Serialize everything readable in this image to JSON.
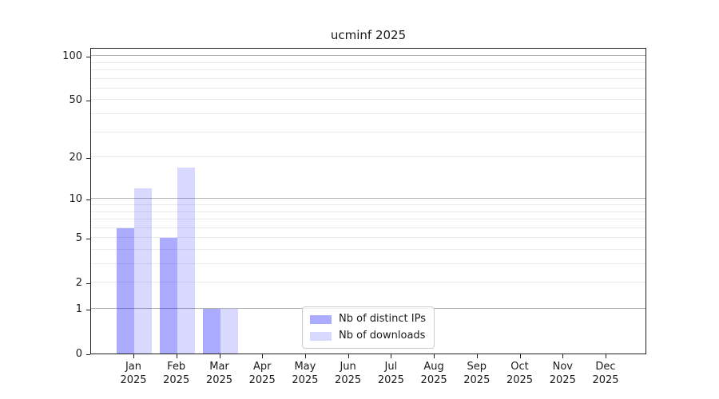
{
  "chart_data": {
    "type": "bar",
    "title": "ucminf 2025",
    "categories": [
      "Jan",
      "Feb",
      "Mar",
      "Apr",
      "May",
      "Jun",
      "Jul",
      "Aug",
      "Sep",
      "Oct",
      "Nov",
      "Dec"
    ],
    "category_year": "2025",
    "series": [
      {
        "name": "Nb of distinct IPs",
        "color": "rgba(0,0,255,0.33)",
        "values": [
          6,
          5,
          1,
          0,
          0,
          0,
          0,
          0,
          0,
          0,
          0,
          0
        ]
      },
      {
        "name": "Nb of downloads",
        "color": "rgba(0,0,255,0.15)",
        "values": [
          12,
          17,
          1,
          0,
          0,
          0,
          0,
          0,
          0,
          0,
          0,
          0
        ]
      }
    ],
    "yscale": "log1p",
    "ylim": [
      0,
      115
    ],
    "yticks": [
      0,
      1,
      2,
      5,
      10,
      20,
      50,
      100
    ],
    "ytick_labels": [
      "0",
      "1",
      "2",
      "5",
      "10",
      "20",
      "50",
      "100"
    ],
    "grid_major_values": [
      1,
      10,
      100
    ],
    "grid_minor_values": [
      2,
      3,
      4,
      5,
      6,
      7,
      8,
      9,
      20,
      30,
      40,
      50,
      60,
      70,
      80,
      90
    ],
    "grid": true,
    "legend_position": "lower center",
    "colors": {
      "grid_major": "#b3b3b3",
      "grid_minor": "#ebebeb",
      "axis": "#1f1f1f",
      "text": "#1a1a1a",
      "legend_border": "#cccccc",
      "background": "#ffffff"
    }
  }
}
